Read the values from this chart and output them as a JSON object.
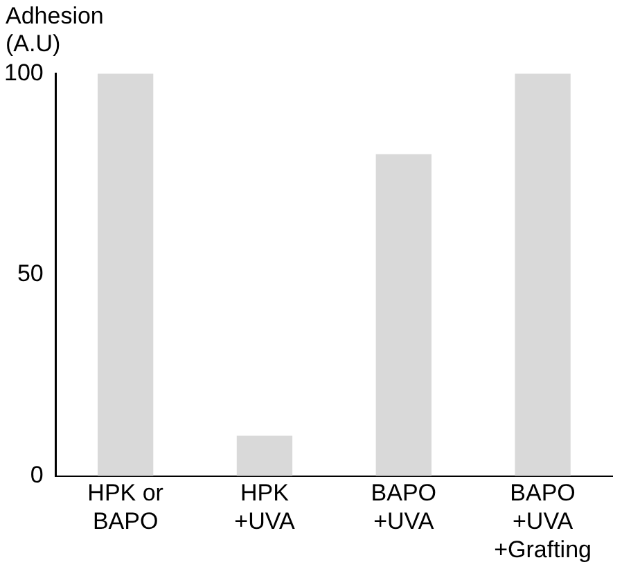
{
  "chart_data": {
    "type": "bar",
    "ylabel": "Adhesion\n(A.U)",
    "categories": [
      "HPK or\nBAPO",
      "HPK\n+UVA",
      "BAPO\n+UVA",
      "BAPO\n+UVA\n+Grafting"
    ],
    "values": [
      100,
      10,
      80,
      100
    ],
    "color": "#d9d9d9",
    "ylim": [
      0,
      100
    ],
    "yticks": [
      0,
      50,
      100
    ],
    "grid": false,
    "legend": false
  }
}
